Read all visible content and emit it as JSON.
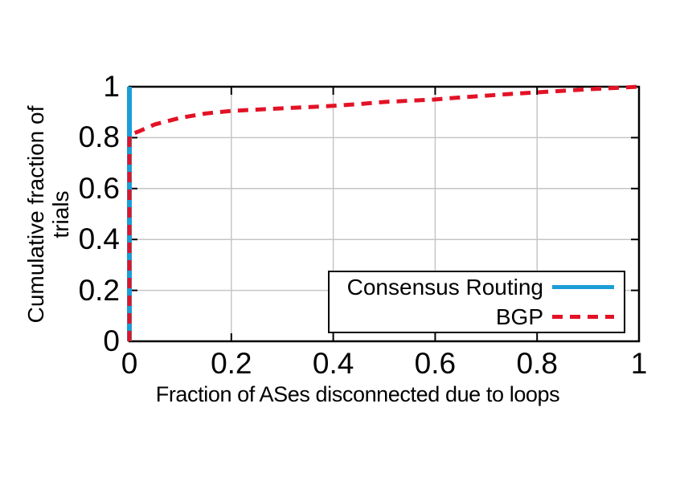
{
  "chart_data": {
    "type": "line",
    "title": "",
    "xlabel": "Fraction of ASes disconnected due to loops",
    "ylabel": "Cumulative fraction of trials",
    "xlim": [
      0,
      1
    ],
    "ylim": [
      0,
      1
    ],
    "grid": true,
    "legend_position": "inside bottom-right",
    "x_ticks": [
      0,
      0.2,
      0.4,
      0.6,
      0.8,
      1
    ],
    "y_ticks": [
      0,
      0.2,
      0.4,
      0.6,
      0.8,
      1
    ],
    "x_tick_labels": [
      "0",
      "0.2",
      "0.4",
      "0.6",
      "0.8",
      "1"
    ],
    "y_tick_labels": [
      "0",
      "0.2",
      "0.4",
      "0.6",
      "0.8",
      "1"
    ],
    "series": [
      {
        "name": "Consensus Routing",
        "color": "#1b9dd8",
        "line_style": "solid",
        "line_width": 6,
        "points": [
          [
            0,
            0
          ],
          [
            0,
            1
          ]
        ]
      },
      {
        "name": "BGP",
        "color": "#e31226",
        "line_style": "dashed",
        "line_width": 5,
        "points": [
          [
            0,
            0
          ],
          [
            0,
            0.81
          ],
          [
            0.02,
            0.826
          ],
          [
            0.05,
            0.852
          ],
          [
            0.1,
            0.878
          ],
          [
            0.15,
            0.895
          ],
          [
            0.2,
            0.905
          ],
          [
            0.25,
            0.91
          ],
          [
            0.3,
            0.915
          ],
          [
            0.35,
            0.92
          ],
          [
            0.4,
            0.925
          ],
          [
            0.45,
            0.932
          ],
          [
            0.5,
            0.94
          ],
          [
            0.55,
            0.945
          ],
          [
            0.6,
            0.95
          ],
          [
            0.65,
            0.958
          ],
          [
            0.7,
            0.965
          ],
          [
            0.75,
            0.972
          ],
          [
            0.8,
            0.978
          ],
          [
            0.85,
            0.984
          ],
          [
            0.9,
            0.99
          ],
          [
            0.95,
            0.995
          ],
          [
            1,
            1
          ]
        ]
      }
    ]
  },
  "axes": {
    "x_label": "Fraction of ASes disconnected due to loops",
    "y_label_line1": "Cumulative fraction of",
    "y_label_line2": "trials"
  },
  "legend": {
    "items": [
      {
        "label": "Consensus Routing",
        "color": "#1b9dd8",
        "style": "solid"
      },
      {
        "label": "BGP",
        "color": "#e31226",
        "style": "dashed"
      }
    ]
  },
  "colors": {
    "consensus_blue": "#1b9dd8",
    "bgp_red": "#e31226",
    "grid_gray": "#c6c6c6",
    "frame_black": "#000000",
    "background": "#ffffff"
  }
}
